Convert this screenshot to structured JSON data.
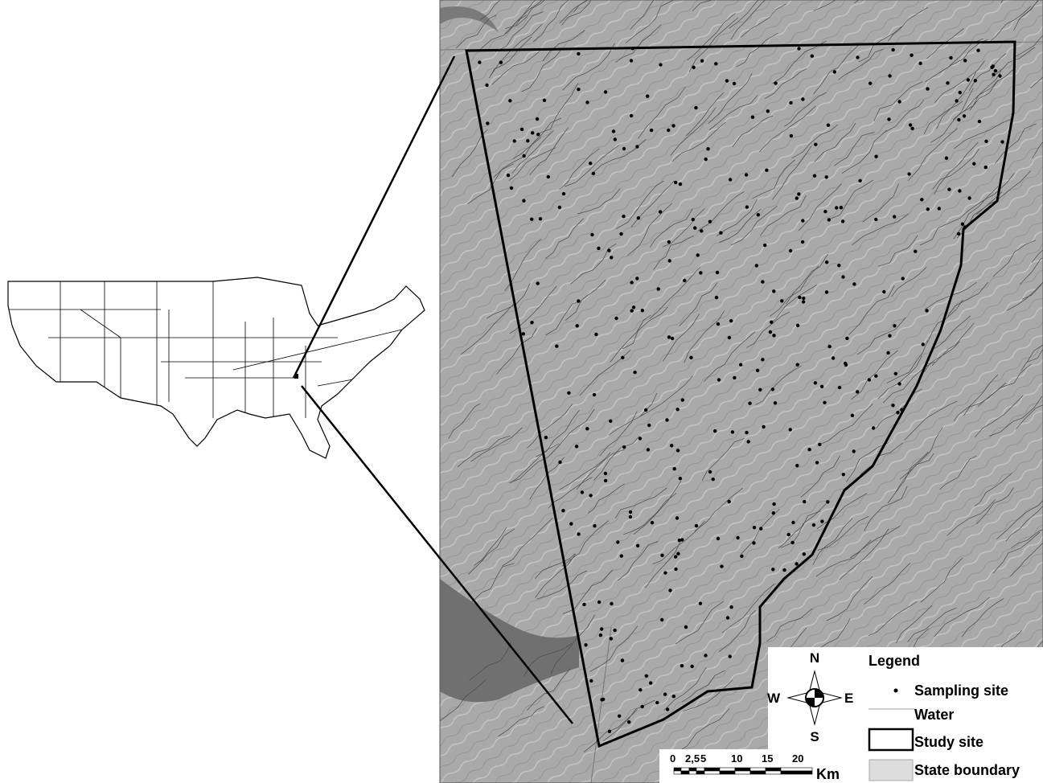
{
  "compass": {
    "north": "N",
    "south": "S",
    "east": "E",
    "west": "W"
  },
  "legend": {
    "title": "Legend",
    "items": [
      "Sampling site",
      "Water",
      "Study site",
      "State boundary"
    ]
  },
  "scale_bar": {
    "labels": [
      "0",
      "2,5",
      "5",
      "10",
      "15",
      "20"
    ],
    "unit": "Km"
  }
}
